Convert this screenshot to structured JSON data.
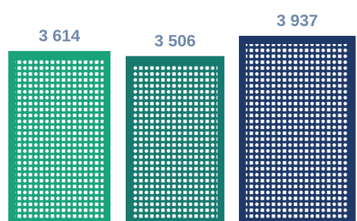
{
  "chart_data": {
    "type": "bar",
    "values": [
      3614,
      3506,
      3937
    ],
    "value_labels": [
      "3 614",
      "3 506",
      "3 937"
    ],
    "colors": [
      "#1aa37b",
      "#177a6f",
      "#1e3868"
    ],
    "label_color": "#6f89ab"
  }
}
